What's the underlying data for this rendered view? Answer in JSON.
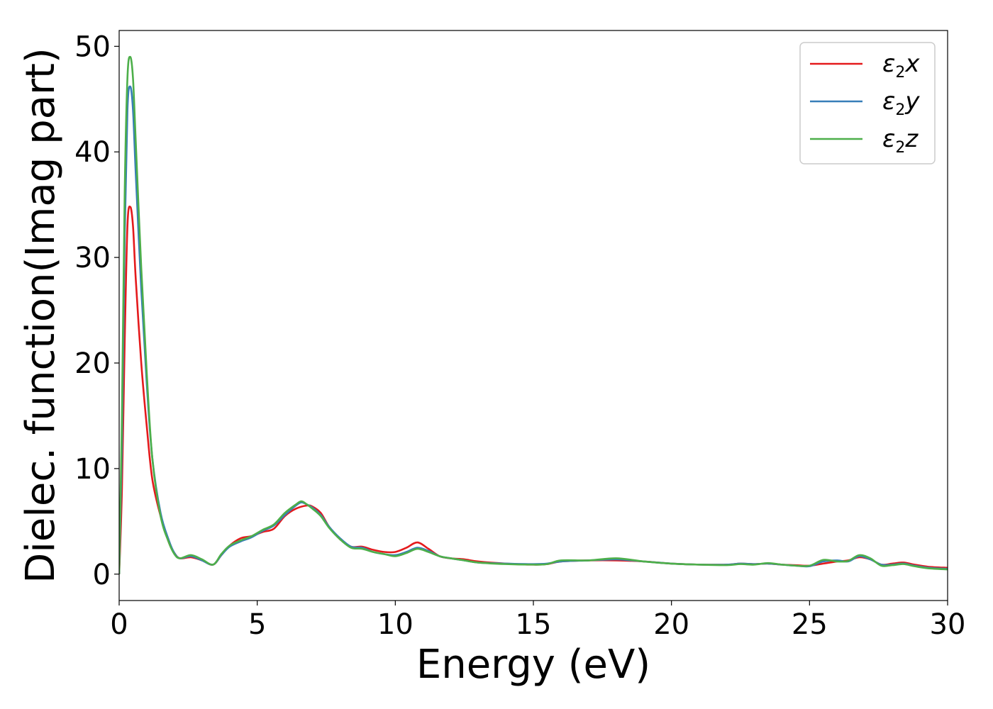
{
  "chart_data": {
    "type": "line",
    "xlabel": "Energy (eV)",
    "ylabel": "Dielec. function(Imag part)",
    "xlim": [
      0,
      30
    ],
    "ylim": [
      -2.5,
      51.5
    ],
    "xticks": [
      0,
      5,
      10,
      15,
      20,
      25,
      30
    ],
    "yticks": [
      0,
      10,
      20,
      30,
      40,
      50
    ],
    "grid": false,
    "legend_position": "top-right",
    "series": [
      {
        "name": "ε2x",
        "legend_base": "ε",
        "legend_sub": "2",
        "legend_suffix": "x",
        "color": "#e41a1c",
        "x": [
          0,
          0.1,
          0.2,
          0.3,
          0.4,
          0.5,
          0.6,
          0.8,
          1.0,
          1.2,
          1.5,
          1.8,
          2.0,
          2.2,
          2.6,
          3.0,
          3.4,
          3.7,
          4.0,
          4.4,
          4.8,
          5.2,
          5.6,
          6.0,
          6.4,
          6.8,
          7.0,
          7.3,
          7.6,
          8.0,
          8.4,
          8.8,
          9.2,
          9.6,
          10.0,
          10.4,
          10.8,
          11.2,
          11.6,
          12.0,
          12.5,
          13.0,
          14.0,
          15.0,
          15.5,
          16.0,
          17.0,
          18.0,
          19.0,
          20.0,
          21.0,
          22.0,
          22.5,
          23.0,
          23.5,
          24.0,
          24.5,
          25.0,
          25.5,
          26.0,
          26.4,
          26.8,
          27.2,
          27.6,
          28.0,
          28.4,
          28.8,
          29.3,
          30.0
        ],
        "y": [
          0,
          8,
          22,
          33,
          34.8,
          33,
          28,
          20,
          14,
          9,
          5.5,
          3,
          2,
          1.5,
          1.6,
          1.3,
          0.9,
          1.8,
          2.7,
          3.4,
          3.6,
          4.0,
          4.3,
          5.5,
          6.2,
          6.5,
          6.4,
          5.8,
          4.5,
          3.3,
          2.6,
          2.6,
          2.3,
          2.1,
          2.1,
          2.5,
          3.0,
          2.4,
          1.7,
          1.5,
          1.4,
          1.2,
          1.0,
          0.9,
          0.95,
          1.2,
          1.3,
          1.3,
          1.2,
          1.0,
          0.9,
          0.9,
          1.0,
          0.95,
          1.0,
          0.9,
          0.85,
          0.8,
          1.0,
          1.2,
          1.3,
          1.6,
          1.4,
          0.9,
          1.0,
          1.1,
          0.9,
          0.7,
          0.6
        ]
      },
      {
        "name": "ε2y",
        "legend_base": "ε",
        "legend_sub": "2",
        "legend_suffix": "y",
        "color": "#377eb8",
        "x": [
          0,
          0.1,
          0.2,
          0.3,
          0.4,
          0.5,
          0.6,
          0.8,
          1.0,
          1.2,
          1.5,
          1.8,
          2.0,
          2.2,
          2.6,
          3.0,
          3.4,
          3.7,
          4.0,
          4.4,
          4.8,
          5.2,
          5.6,
          6.0,
          6.4,
          6.6,
          6.8,
          7.0,
          7.3,
          7.6,
          8.0,
          8.4,
          8.8,
          9.2,
          9.6,
          10.0,
          10.4,
          10.8,
          11.2,
          11.6,
          12.0,
          12.5,
          13.0,
          14.0,
          15.0,
          15.5,
          16.0,
          17.0,
          18.0,
          19.0,
          20.0,
          21.0,
          22.0,
          22.5,
          23.0,
          23.5,
          24.0,
          24.5,
          25.0,
          25.5,
          26.0,
          26.4,
          26.8,
          27.2,
          27.6,
          28.0,
          28.4,
          28.8,
          29.3,
          30.0
        ],
        "y": [
          0,
          12,
          32,
          44,
          46.2,
          44,
          38,
          27,
          18,
          11,
          5.8,
          3.2,
          2.0,
          1.5,
          1.7,
          1.3,
          0.9,
          1.8,
          2.6,
          3.1,
          3.5,
          4.1,
          4.6,
          5.6,
          6.5,
          6.8,
          6.6,
          6.3,
          5.6,
          4.5,
          3.4,
          2.6,
          2.5,
          2.1,
          1.9,
          1.8,
          2.1,
          2.5,
          2.2,
          1.7,
          1.5,
          1.3,
          1.1,
          1.0,
          0.95,
          1.0,
          1.2,
          1.3,
          1.4,
          1.2,
          1.0,
          0.9,
          0.9,
          1.0,
          0.95,
          1.0,
          0.9,
          0.8,
          0.75,
          1.2,
          1.3,
          1.2,
          1.7,
          1.4,
          0.9,
          0.9,
          1.0,
          0.8,
          0.6,
          0.5
        ]
      },
      {
        "name": "ε2z",
        "legend_base": "ε",
        "legend_sub": "2",
        "legend_suffix": "z",
        "color": "#4daf4a",
        "x": [
          0,
          0.1,
          0.2,
          0.3,
          0.4,
          0.5,
          0.6,
          0.8,
          1.0,
          1.2,
          1.5,
          1.8,
          2.0,
          2.2,
          2.6,
          3.0,
          3.4,
          3.7,
          4.0,
          4.4,
          4.8,
          5.2,
          5.6,
          6.0,
          6.4,
          6.6,
          6.8,
          7.0,
          7.3,
          7.6,
          8.0,
          8.4,
          8.8,
          9.2,
          9.6,
          10.0,
          10.4,
          10.8,
          11.2,
          11.6,
          12.0,
          12.5,
          13.0,
          14.0,
          15.0,
          15.5,
          16.0,
          17.0,
          18.0,
          19.0,
          20.0,
          21.0,
          22.0,
          22.5,
          23.0,
          23.5,
          24.0,
          24.5,
          25.0,
          25.5,
          26.0,
          26.4,
          26.8,
          27.2,
          27.6,
          28.0,
          28.4,
          28.8,
          29.3,
          30.0
        ],
        "y": [
          0,
          15,
          36,
          47,
          49.0,
          47,
          41,
          29,
          19,
          11,
          5.5,
          3.0,
          1.9,
          1.5,
          1.8,
          1.4,
          0.9,
          1.9,
          2.7,
          3.2,
          3.6,
          4.2,
          4.7,
          5.8,
          6.6,
          6.9,
          6.6,
          6.2,
          5.5,
          4.4,
          3.3,
          2.5,
          2.4,
          2.1,
          1.9,
          1.7,
          2.0,
          2.4,
          2.1,
          1.7,
          1.5,
          1.3,
          1.1,
          0.95,
          0.9,
          0.95,
          1.3,
          1.3,
          1.5,
          1.2,
          1.0,
          0.9,
          0.85,
          0.95,
          0.9,
          1.05,
          0.9,
          0.8,
          0.8,
          1.35,
          1.2,
          1.25,
          1.8,
          1.5,
          0.8,
          0.85,
          0.95,
          0.75,
          0.55,
          0.45
        ]
      }
    ]
  }
}
